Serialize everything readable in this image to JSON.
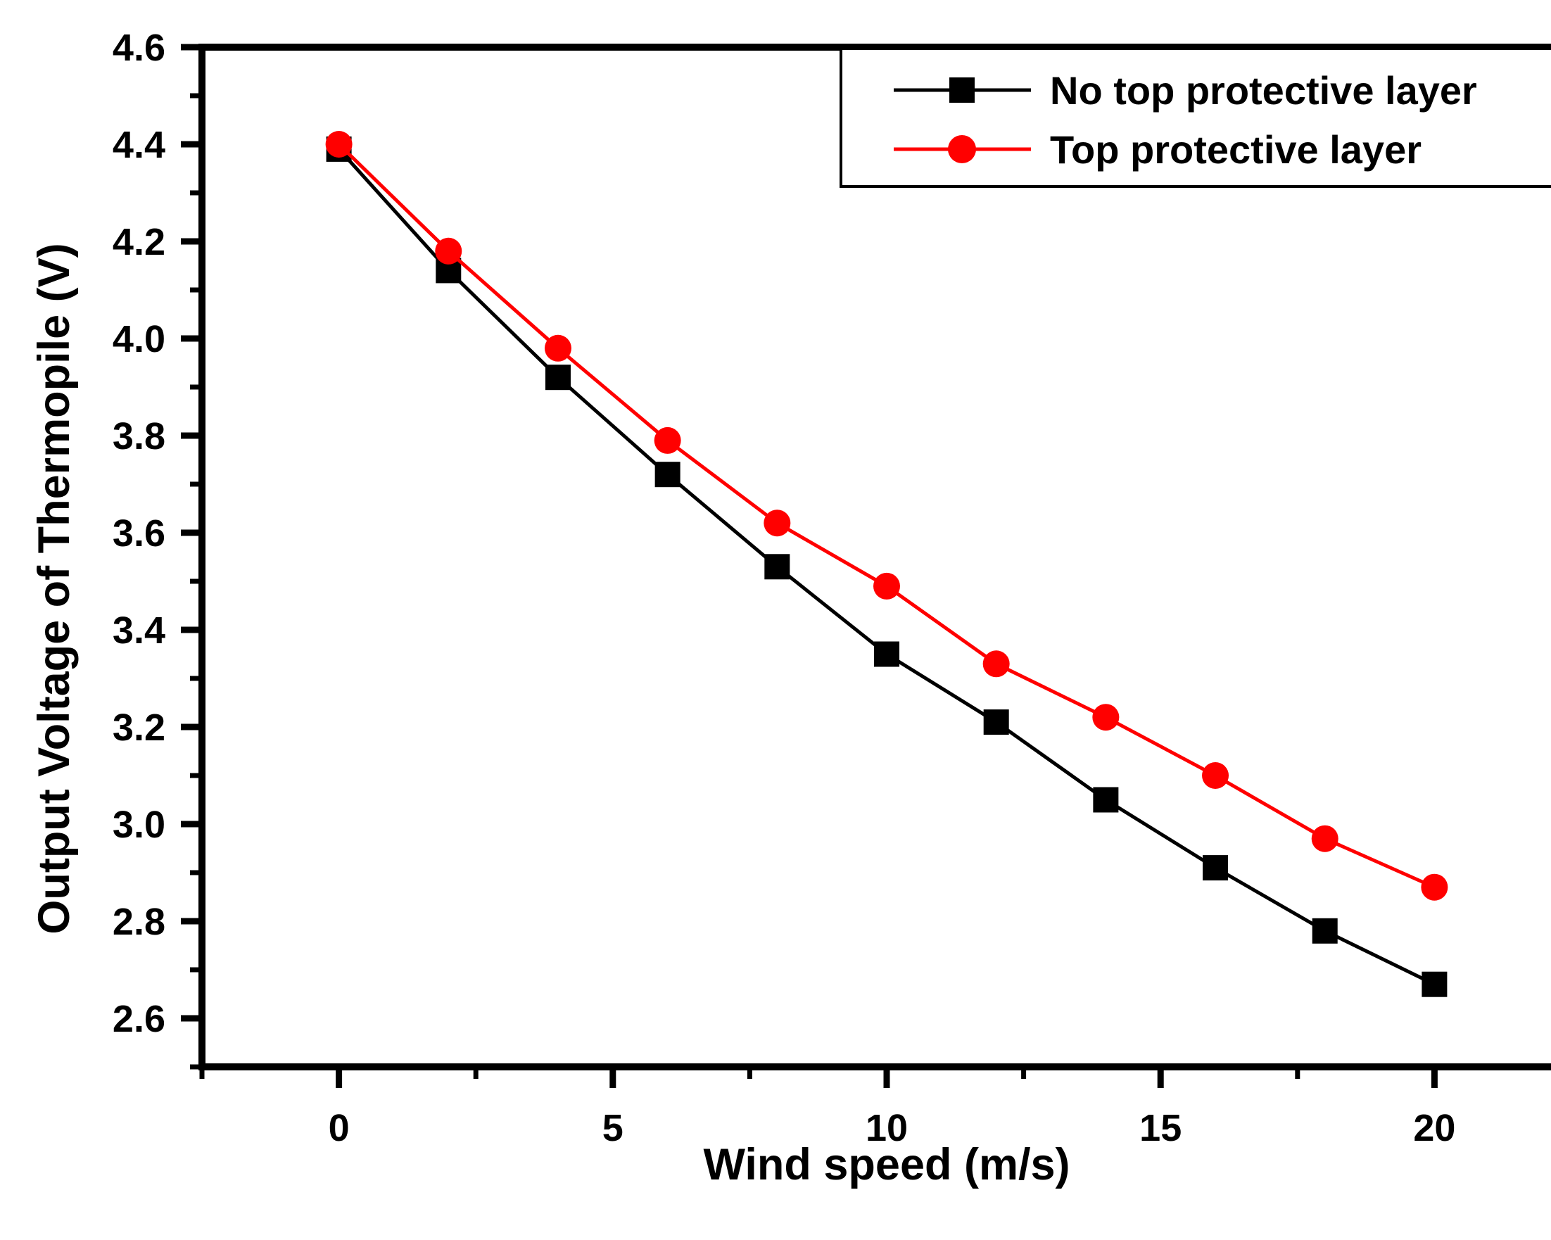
{
  "chart_data": {
    "type": "line",
    "title": "",
    "xlabel": "Wind speed (m/s)",
    "ylabel": "Output Voltage of Thermopile (V)",
    "x": [
      0,
      2,
      4,
      6,
      8,
      10,
      12,
      14,
      16,
      18,
      20
    ],
    "series": [
      {
        "name": "No top protective layer",
        "color": "#000000",
        "marker": "square",
        "values": [
          4.39,
          4.14,
          3.92,
          3.72,
          3.53,
          3.35,
          3.21,
          3.05,
          2.91,
          2.78,
          2.67
        ]
      },
      {
        "name": "Top protective layer",
        "color": "#ff0000",
        "marker": "circle",
        "values": [
          4.4,
          4.18,
          3.98,
          3.79,
          3.62,
          3.49,
          3.33,
          3.22,
          3.1,
          2.97,
          2.87
        ]
      }
    ],
    "x_axis": {
      "min": -2.5,
      "max": 22.5,
      "major_ticks": [
        0,
        5,
        10,
        15,
        20
      ],
      "tick_labels": [
        "0",
        "5",
        "10",
        "15",
        "20"
      ],
      "minor_ticks": [
        -2.5,
        2.5,
        7.5,
        12.5,
        17.5,
        22.5
      ]
    },
    "y_axis": {
      "min": 2.5,
      "max": 4.6,
      "major_ticks": [
        2.6,
        2.8,
        3.0,
        3.2,
        3.4,
        3.6,
        3.8,
        4.0,
        4.2,
        4.4,
        4.6
      ],
      "tick_labels": [
        "2.6",
        "2.8",
        "3.0",
        "3.2",
        "3.4",
        "3.6",
        "3.8",
        "4.0",
        "4.2",
        "4.4",
        "4.6"
      ],
      "minor_ticks": [
        2.5,
        2.7,
        2.9,
        3.1,
        3.3,
        3.5,
        3.7,
        3.9,
        4.1,
        4.3,
        4.5
      ]
    },
    "legend": {
      "position": "top-right",
      "entries": [
        "No top protective layer",
        "Top protective layer"
      ]
    },
    "grid": false,
    "background": "#ffffff",
    "frame_color": "#000000"
  }
}
